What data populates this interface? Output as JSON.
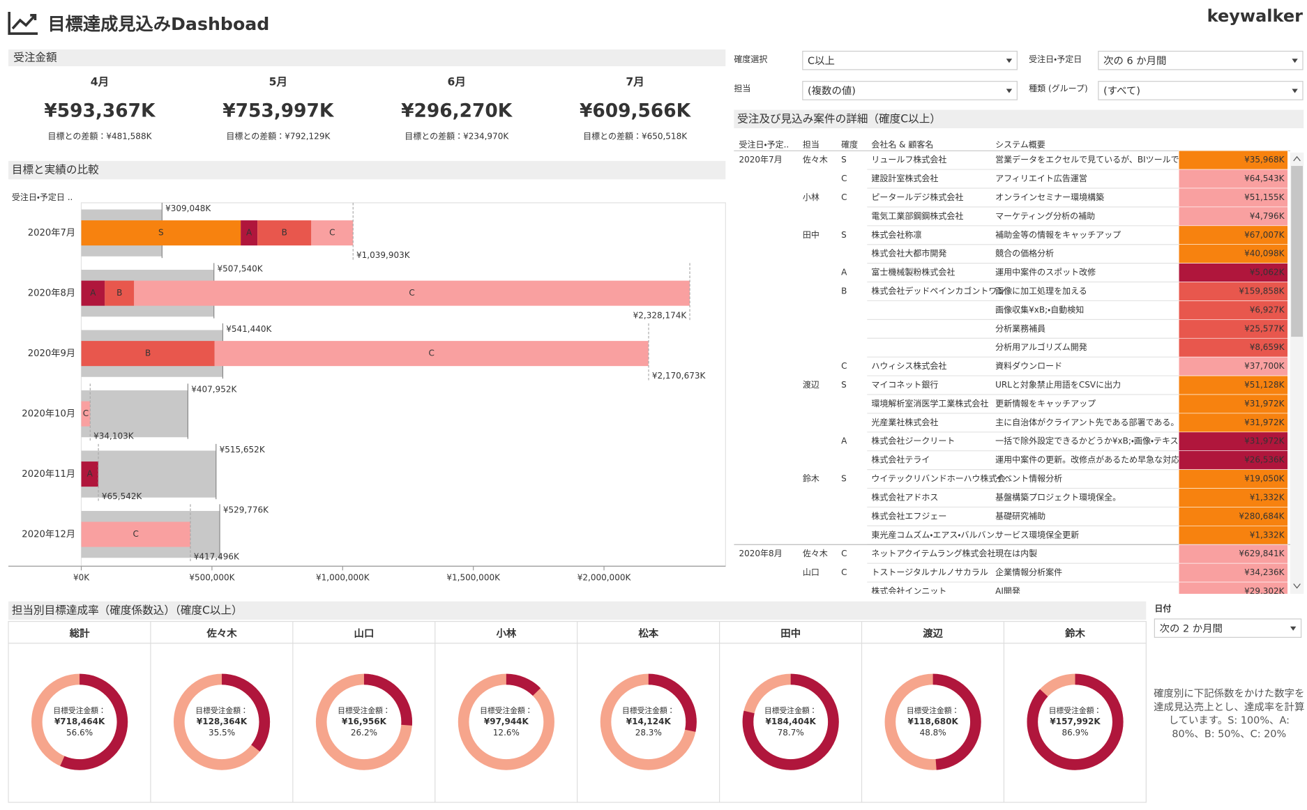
{
  "header": {
    "title": "目標達成見込みDashboad",
    "logo": "keywalker"
  },
  "filters": [
    {
      "label": "確度選択",
      "value": "C以上"
    },
    {
      "label": "受注日・予定日",
      "value": "次の 6 か月間"
    },
    {
      "label": "担当",
      "value": "(複数の値)"
    },
    {
      "label": "種類 (グループ)",
      "value": "(すべて)"
    },
    {
      "label": "日付",
      "value": "次の 2 か月間"
    }
  ],
  "kpi": {
    "title": "受注金額",
    "items": [
      {
        "month": "4月",
        "amount": "¥593,367K",
        "diff": "目標との差額：¥481,588K"
      },
      {
        "month": "5月",
        "amount": "¥753,997K",
        "diff": "目標との差額：¥792,129K"
      },
      {
        "month": "6月",
        "amount": "¥296,270K",
        "diff": "目標との差額：¥234,970K",
        "diff_color": "#e8284a"
      },
      {
        "month": "7月",
        "amount": "¥609,566K",
        "diff": "目標との差額：¥650,518K"
      }
    ]
  },
  "chart_data": [
    {
      "type": "bar",
      "orientation": "horizontal",
      "title": "目標と実績の比較",
      "axis_label": "受注日・予定日 ..",
      "categories": [
        "2020年7月",
        "2020年8月",
        "2020年9月",
        "2020年10月",
        "2020年11月",
        "2020年12月"
      ],
      "series": [
        {
          "name": "S",
          "color": "#f7820f",
          "label_color": "#5a2a00",
          "values": [
            610000,
            null,
            null,
            null,
            null,
            null
          ]
        },
        {
          "name": "A",
          "color": "#b0163c",
          "label_color": "#ffffff",
          "values": [
            64000,
            90000,
            null,
            null,
            65000,
            null
          ]
        },
        {
          "name": "B",
          "color": "#e8574d",
          "label_color": "#ffffff",
          "values": [
            206000,
            112000,
            510000,
            null,
            null,
            null
          ]
        },
        {
          "name": "C",
          "color": "#f9a0a0",
          "label_color": "#7a1a2a",
          "values": [
            160000,
            2126000,
            1660000,
            34000,
            null,
            417000
          ]
        }
      ],
      "targets": {
        "color": "#c8c8c8",
        "values": [
          309048,
          507540,
          541440,
          407952,
          515652,
          529776
        ],
        "value_labels": [
          "¥309,048K",
          "¥507,540K",
          "¥541,440K",
          "¥407,952K",
          "¥515,652K",
          "¥529,776K"
        ]
      },
      "totals": {
        "values": [
          1039903,
          2328174,
          2170673,
          34103,
          65542,
          417496
        ],
        "value_labels": [
          "¥1,039,903K",
          "¥2,328,174K",
          "¥2,170,673K",
          "¥34,103K",
          "¥65,542K",
          "¥417,496K"
        ]
      },
      "xlim": [
        0,
        2465000
      ],
      "xticks": [
        {
          "value": 0,
          "label": "¥0K"
        },
        {
          "value": 500000,
          "label": "¥500,000K"
        },
        {
          "value": 1000000,
          "label": "¥1,000,000K"
        },
        {
          "value": 1500000,
          "label": "¥1,500,000K"
        },
        {
          "value": 2000000,
          "label": "¥2,000,000K"
        }
      ]
    },
    {
      "type": "pie",
      "title": "総計",
      "label": "目標受注金額：",
      "amount": "¥718,464K",
      "values": [
        56.6
      ],
      "value_labels": [
        "56.6%"
      ],
      "color": "#b0163c",
      "track_color": "#f6a58c"
    },
    {
      "type": "pie",
      "title": "佐々木",
      "label": "目標受注金額：",
      "amount": "¥128,364K",
      "values": [
        35.5
      ],
      "value_labels": [
        "35.5%"
      ],
      "color": "#b0163c",
      "track_color": "#f6a58c"
    },
    {
      "type": "pie",
      "title": "山口",
      "label": "目標受注金額：",
      "amount": "¥16,956K",
      "values": [
        26.2
      ],
      "value_labels": [
        "26.2%"
      ],
      "color": "#b0163c",
      "track_color": "#f6a58c"
    },
    {
      "type": "pie",
      "title": "小林",
      "label": "目標受注金額：",
      "amount": "¥97,944K",
      "values": [
        12.6
      ],
      "value_labels": [
        "12.6%"
      ],
      "color": "#b0163c",
      "track_color": "#f6a58c"
    },
    {
      "type": "pie",
      "title": "松本",
      "label": "目標受注金額：",
      "amount": "¥14,124K",
      "values": [
        28.3
      ],
      "value_labels": [
        "28.3%"
      ],
      "color": "#b0163c",
      "track_color": "#f6a58c"
    },
    {
      "type": "pie",
      "title": "田中",
      "label": "目標受注金額：",
      "amount": "¥184,404K",
      "values": [
        78.7
      ],
      "value_labels": [
        "78.7%"
      ],
      "color": "#b0163c",
      "track_color": "#f6a58c"
    },
    {
      "type": "pie",
      "title": "渡辺",
      "label": "目標受注金額：",
      "amount": "¥118,680K",
      "values": [
        48.8
      ],
      "value_labels": [
        "48.8%"
      ],
      "color": "#b0163c",
      "track_color": "#f6a58c"
    },
    {
      "type": "pie",
      "title": "鈴木",
      "label": "目標受注金額：",
      "amount": "¥157,992K",
      "values": [
        86.9
      ],
      "value_labels": [
        "86.9%"
      ],
      "color": "#b0163c",
      "track_color": "#f6a58c"
    }
  ],
  "table": {
    "title": "受注及び見込み案件の詳細（確度C以上）",
    "columns": [
      "受注日・予定..",
      "担当",
      "確度",
      "会社名 & 顧客名",
      "システム概要"
    ],
    "rank_colors": {
      "S": "#f7820f",
      "A": "#b0163c",
      "B": "#e8574d",
      "C": "#f9a0a0"
    },
    "rows": [
      [
        "2020年7月",
        "佐々木",
        "S",
        "リュールフ株式会社",
        "営業データをエクセルで見ているが、BIツールで省力..",
        "¥35,968K"
      ],
      [
        null,
        null,
        "C",
        "建設計室株式会社",
        "アフィリエイト広告運営",
        "¥64,543K"
      ],
      [
        null,
        "小林",
        "C",
        "ピータールデジ株式会社",
        "オンラインセミナー環境構築",
        "¥51,155K"
      ],
      [
        null,
        null,
        null,
        "電気工業部鋼鋼株式会社",
        "マーケティング分析の補助",
        "¥4,796K"
      ],
      [
        null,
        "田中",
        "S",
        "株式会社称凛",
        "補助金等の情報をキャッチアップ",
        "¥67,007K"
      ],
      [
        null,
        null,
        null,
        "株式会社大都市開発",
        "競合の価格分析",
        "¥40,098K"
      ],
      [
        null,
        null,
        "A",
        "富士機械製粉株式会社",
        "運用中案件のスポット改修",
        "¥5,062K"
      ],
      [
        null,
        null,
        "B",
        "株式会社デッドペインカゴントワン",
        "画像に加工処理を加える",
        "¥159,858K"
      ],
      [
        null,
        null,
        null,
        null,
        "画像収集¥xB;・自動検知",
        "¥6,927K"
      ],
      [
        null,
        null,
        null,
        null,
        "分析業務補員",
        "¥25,577K"
      ],
      [
        null,
        null,
        null,
        null,
        "分析用アルゴリズム開発",
        "¥8,659K"
      ],
      [
        null,
        null,
        "C",
        "ハウィシス株式会社",
        "資料ダウンロード",
        "¥37,700K"
      ],
      [
        null,
        "渡辺",
        "S",
        "マイコネット銀行",
        "URLと対象禁止用語をCSVに出力",
        "¥51,128K"
      ],
      [
        null,
        null,
        null,
        "環境解析室消医学工業株式会社",
        "更新情報をキャッチアップ",
        "¥31,972K"
      ],
      [
        null,
        null,
        null,
        "光産業社株式会社",
        "主に自治体がクライアント先である部署である。使い..",
        "¥31,972K"
      ],
      [
        null,
        null,
        "A",
        "株式会社ジークリート",
        "一括で除外設定できるかどうか¥xB;・画像・テキスト..",
        "¥31,972K"
      ],
      [
        null,
        null,
        null,
        "株式会社テライ",
        "運用中案件の更新。改修点があるため早急な対応..",
        "¥26,536K"
      ],
      [
        null,
        "鈴木",
        "S",
        "ウイテックリバンドホーハウ株式会..",
        "イベント情報分析",
        "¥19,050K"
      ],
      [
        null,
        null,
        null,
        "株式会社アドホス",
        "基盤構築プロジェクト環境保全。",
        "¥1,332K"
      ],
      [
        null,
        null,
        null,
        "株式会社エフジェー",
        "基礎研究補助",
        "¥280,684K"
      ],
      [
        null,
        null,
        null,
        "東光産コムズム・エアス・バルバン..",
        "サービス環境保全更新",
        "¥1,332K"
      ],
      [
        "2020年8月",
        "佐々木",
        "C",
        "ネットアクイテムラング株式会社",
        "現在は内製",
        "¥629,841K"
      ],
      [
        null,
        "山口",
        "C",
        "トストージタルナルノサカラル",
        "企業情報分析案件",
        "¥34,236K"
      ],
      [
        null,
        null,
        null,
        "株式会社インニット",
        "AI開発",
        "¥29,302K"
      ]
    ]
  },
  "achievement": {
    "title": "担当別目標達成率（確度係数込）（確度C以上）",
    "note": "確度別に下記係数をかけた数字を達成見込売上とし、達成率を計算しています。S: 100%、A: 80%、B: 50%、C: 20%"
  }
}
